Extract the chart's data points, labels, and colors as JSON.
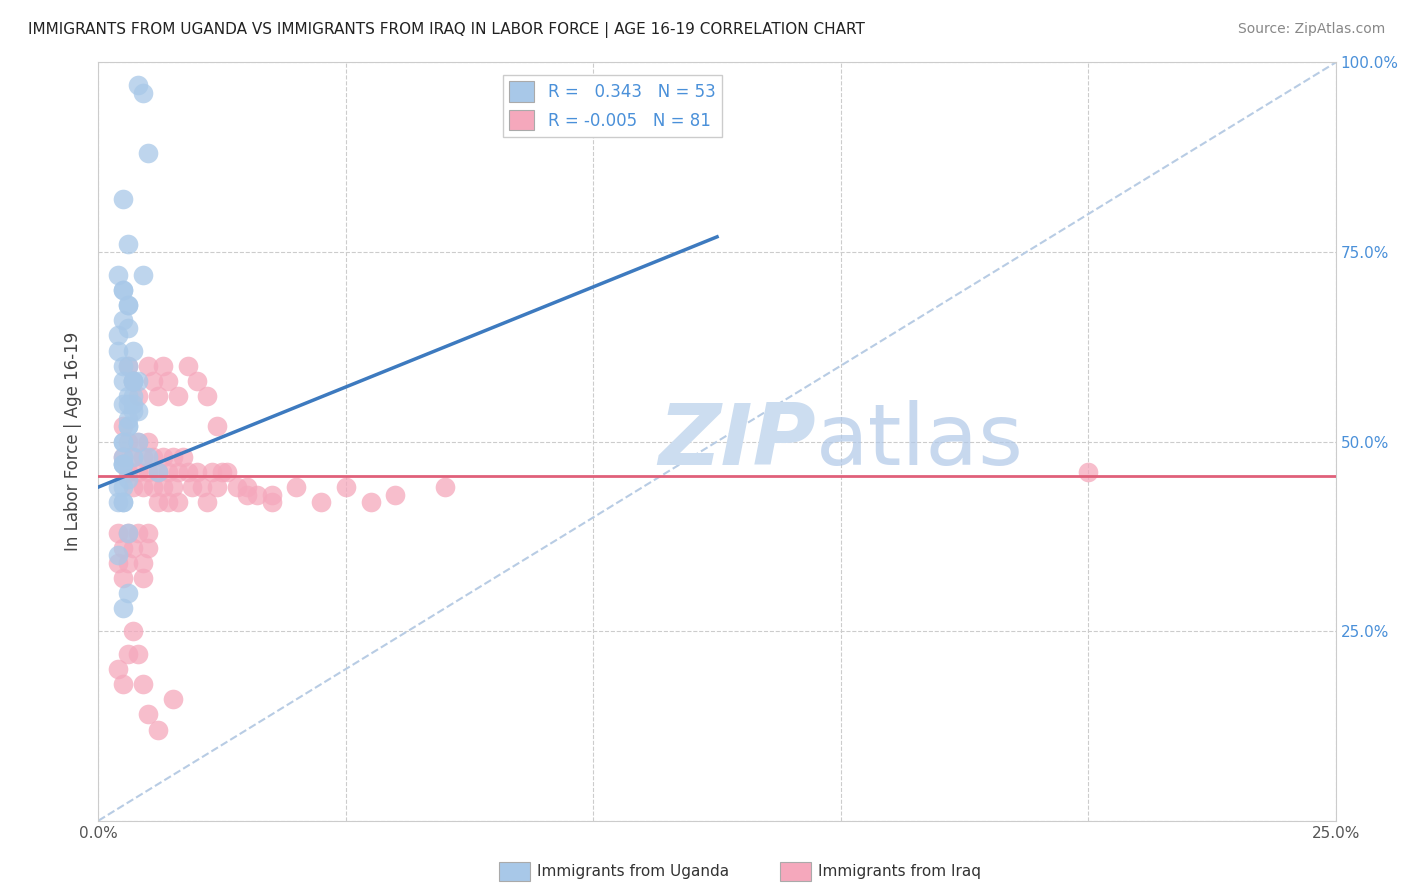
{
  "title": "IMMIGRANTS FROM UGANDA VS IMMIGRANTS FROM IRAQ IN LABOR FORCE | AGE 16-19 CORRELATION CHART",
  "source": "Source: ZipAtlas.com",
  "ylabel": "In Labor Force | Age 16-19",
  "x_min": 0.0,
  "x_max": 0.25,
  "y_min": 0.0,
  "y_max": 1.0,
  "color_uganda": "#a8c8e8",
  "color_iraq": "#f5a8bc",
  "color_uganda_line": "#3d7abf",
  "color_iraq_line": "#e0607a",
  "color_ref_line": "#b8cce4",
  "watermark_color": "#ccddf0",
  "tick_color_right": "#4a90d9",
  "tick_color_bottom": "#555555",
  "uganda_x": [
    0.008,
    0.009,
    0.01,
    0.005,
    0.006,
    0.004,
    0.005,
    0.006,
    0.005,
    0.004,
    0.006,
    0.005,
    0.007,
    0.008,
    0.006,
    0.005,
    0.01,
    0.012,
    0.004,
    0.004,
    0.007,
    0.006,
    0.005,
    0.005,
    0.006,
    0.007,
    0.005,
    0.006,
    0.007,
    0.005,
    0.009,
    0.005,
    0.005,
    0.004,
    0.005,
    0.006,
    0.007,
    0.007,
    0.006,
    0.005,
    0.004,
    0.006,
    0.005,
    0.006,
    0.007,
    0.008,
    0.006,
    0.005,
    0.008,
    0.007,
    0.005,
    0.006,
    0.005
  ],
  "uganda_y": [
    0.97,
    0.96,
    0.88,
    0.82,
    0.76,
    0.72,
    0.7,
    0.68,
    0.66,
    0.64,
    0.6,
    0.58,
    0.56,
    0.54,
    0.52,
    0.5,
    0.48,
    0.46,
    0.44,
    0.42,
    0.58,
    0.56,
    0.6,
    0.5,
    0.55,
    0.62,
    0.47,
    0.53,
    0.58,
    0.44,
    0.72,
    0.47,
    0.42,
    0.35,
    0.48,
    0.38,
    0.55,
    0.58,
    0.3,
    0.55,
    0.62,
    0.68,
    0.47,
    0.52,
    0.48,
    0.58,
    0.65,
    0.7,
    0.5,
    0.54,
    0.42,
    0.45,
    0.28
  ],
  "iraq_x": [
    0.005,
    0.005,
    0.006,
    0.006,
    0.007,
    0.007,
    0.008,
    0.008,
    0.009,
    0.009,
    0.01,
    0.01,
    0.011,
    0.011,
    0.012,
    0.012,
    0.013,
    0.013,
    0.014,
    0.014,
    0.015,
    0.015,
    0.016,
    0.016,
    0.017,
    0.018,
    0.019,
    0.02,
    0.021,
    0.022,
    0.023,
    0.024,
    0.025,
    0.03,
    0.035,
    0.004,
    0.004,
    0.005,
    0.005,
    0.006,
    0.006,
    0.007,
    0.008,
    0.009,
    0.009,
    0.01,
    0.01,
    0.006,
    0.007,
    0.008,
    0.01,
    0.011,
    0.012,
    0.013,
    0.014,
    0.016,
    0.018,
    0.02,
    0.022,
    0.024,
    0.026,
    0.028,
    0.03,
    0.032,
    0.035,
    0.04,
    0.045,
    0.05,
    0.055,
    0.06,
    0.07,
    0.004,
    0.005,
    0.006,
    0.007,
    0.008,
    0.009,
    0.01,
    0.012,
    0.015,
    0.2
  ],
  "iraq_y": [
    0.52,
    0.48,
    0.5,
    0.46,
    0.48,
    0.44,
    0.5,
    0.46,
    0.48,
    0.44,
    0.5,
    0.46,
    0.48,
    0.44,
    0.46,
    0.42,
    0.48,
    0.44,
    0.46,
    0.42,
    0.48,
    0.44,
    0.46,
    0.42,
    0.48,
    0.46,
    0.44,
    0.46,
    0.44,
    0.42,
    0.46,
    0.44,
    0.46,
    0.44,
    0.42,
    0.38,
    0.34,
    0.32,
    0.36,
    0.38,
    0.34,
    0.36,
    0.38,
    0.34,
    0.32,
    0.36,
    0.38,
    0.6,
    0.58,
    0.56,
    0.6,
    0.58,
    0.56,
    0.6,
    0.58,
    0.56,
    0.6,
    0.58,
    0.56,
    0.52,
    0.46,
    0.44,
    0.43,
    0.43,
    0.43,
    0.44,
    0.42,
    0.44,
    0.42,
    0.43,
    0.44,
    0.2,
    0.18,
    0.22,
    0.25,
    0.22,
    0.18,
    0.14,
    0.12,
    0.16,
    0.46
  ],
  "uganda_line_x0": 0.0,
  "uganda_line_x1": 0.125,
  "uganda_line_y0": 0.44,
  "uganda_line_y1": 0.77,
  "iraq_line_x0": 0.0,
  "iraq_line_x1": 0.25,
  "iraq_line_y0": 0.455,
  "iraq_line_y1": 0.455
}
